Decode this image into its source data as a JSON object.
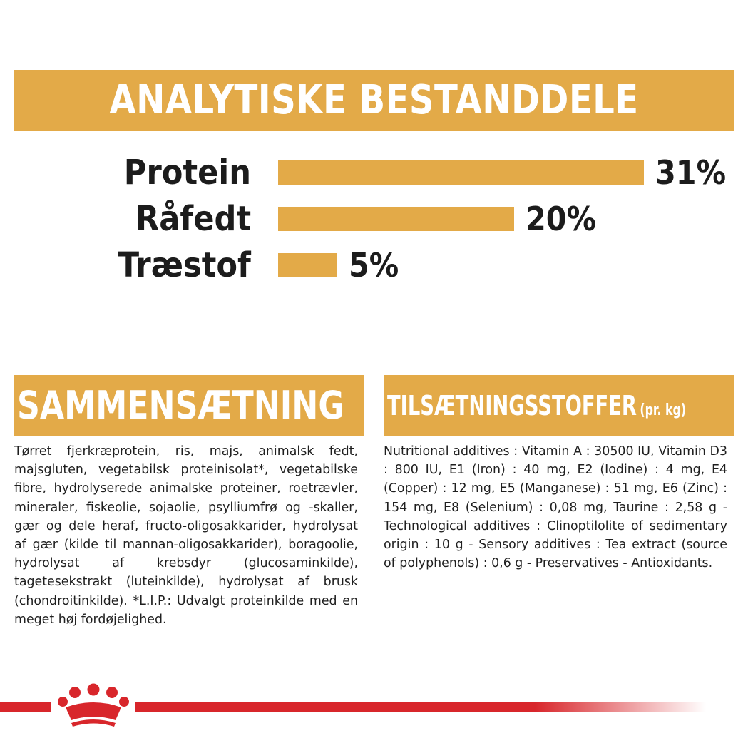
{
  "header": {
    "title": "ANALYTISKE BESTANDDELE"
  },
  "chart_data": {
    "type": "bar",
    "orientation": "horizontal",
    "categories": [
      "Protein",
      "Råfedt",
      "Træstof"
    ],
    "values": [
      31,
      20,
      5
    ],
    "value_labels": [
      "31%",
      "20%",
      "5%"
    ],
    "unit": "%",
    "color": "#e3aa48"
  },
  "composition": {
    "title": "SAMMENSÆTNING",
    "text": "Tørret fjerkræprotein, ris, majs, animalsk fedt, majsgluten, vegetabilsk proteinisolat*, vegetabilske fibre, hydrolyserede animalske proteiner, roetrævler, mineraler, fiskeolie, sojaolie, psylliumfrø og -skaller, gær og dele heraf, fructo-oligosakkarider, hydrolysat af gær (kilde til mannan-oligosakkarider), boragoolie, hydrolysat af krebsdyr (glucosaminkilde), tagetesekstrakt (luteinkilde), hydrolysat af brusk (chondroitinkilde). *L.I.P.: Udvalgt proteinkilde med en meget høj fordøjelighed."
  },
  "additives": {
    "title": "TILSÆTNINGSSTOFFER",
    "title_suffix": "(pr. kg)",
    "text": "Nutritional additives : Vitamin A : 30500 IU, Vitamin D3 : 800 IU, E1 (Iron) : 40 mg, E2 (Iodine) : 4 mg, E4 (Copper) : 12 mg, E5 (Manganese) : 51 mg, E6 (Zinc) : 154 mg, E8 (Selenium) : 0,08 mg, Taurine : 2,58 g - Technological additives : Clinoptilolite of sedimentary origin : 10 g - Sensory additives : Tea extract (source of polyphenols) : 0,6 g - Preservatives - Antioxidants."
  },
  "footer": {
    "logo": "royal-canin-crown-logo",
    "accent": "#d8262b"
  }
}
